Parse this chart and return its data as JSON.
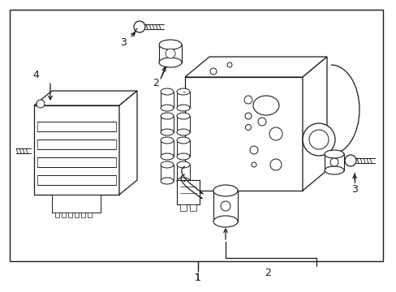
{
  "background_color": "#ffffff",
  "line_color": "#1a1a1a",
  "text_color": "#1a1a1a",
  "label_1": "1",
  "label_2": "2",
  "label_3": "3",
  "label_4": "4",
  "fig_width": 4.89,
  "fig_height": 3.6,
  "dpi": 100
}
